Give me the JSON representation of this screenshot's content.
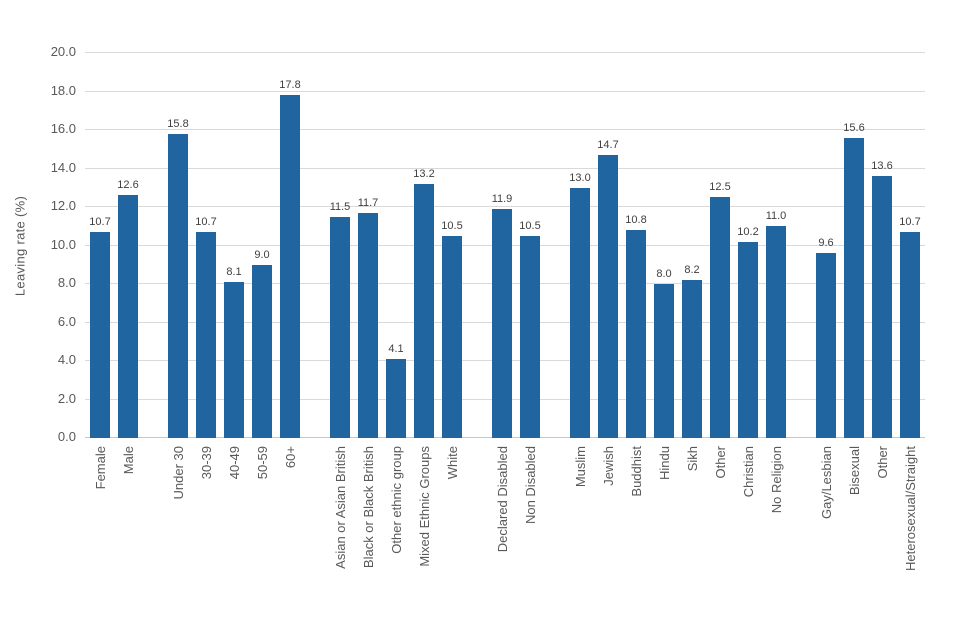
{
  "chart_data": {
    "type": "bar",
    "title": "",
    "xlabel": "",
    "ylabel": "Leaving rate (%)",
    "ylim": [
      0,
      20
    ],
    "yticks": [
      0,
      2,
      4,
      6,
      8,
      10,
      12,
      14,
      16,
      18,
      20
    ],
    "ytick_decimals": 1,
    "value_label_decimals": 1,
    "grid": "horizontal",
    "legend": "none",
    "colors": {
      "bar": "#2064A0",
      "gridline": "#D9D9D9",
      "axis_line": "#C6C6C6",
      "axis_text": "#595959",
      "value_label": "#404040"
    },
    "groups": [
      [
        {
          "label": "Female",
          "value": 10.7
        },
        {
          "label": "Male",
          "value": 12.6
        }
      ],
      [
        {
          "label": "Under 30",
          "value": 15.8
        },
        {
          "label": "30-39",
          "value": 10.7
        },
        {
          "label": "40-49",
          "value": 8.1
        },
        {
          "label": "50-59",
          "value": 9.0
        },
        {
          "label": "60+",
          "value": 17.8
        }
      ],
      [
        {
          "label": "Asian or Asian British",
          "value": 11.5
        },
        {
          "label": "Black or Black British",
          "value": 11.7
        },
        {
          "label": "Other ethnic group",
          "value": 4.1
        },
        {
          "label": "Mixed Ethnic Groups",
          "value": 13.2
        },
        {
          "label": "White",
          "value": 10.5
        }
      ],
      [
        {
          "label": "Declared Disabled",
          "value": 11.9
        },
        {
          "label": "Non Disabled",
          "value": 10.5
        }
      ],
      [
        {
          "label": "Muslim",
          "value": 13.0
        },
        {
          "label": "Jewish",
          "value": 14.7
        },
        {
          "label": "Buddhist",
          "value": 10.8
        },
        {
          "label": "Hindu",
          "value": 8.0
        },
        {
          "label": "Sikh",
          "value": 8.2
        },
        {
          "label": "Other",
          "value": 12.5
        },
        {
          "label": "Christian",
          "value": 10.2
        },
        {
          "label": "No Religion",
          "value": 11.0
        }
      ],
      [
        {
          "label": "Gay/Lesbian",
          "value": 9.6
        },
        {
          "label": "Bisexual",
          "value": 15.6
        },
        {
          "label": "Other",
          "value": 13.6
        },
        {
          "label": "Heterosexual/Straight",
          "value": 10.7
        }
      ]
    ]
  }
}
